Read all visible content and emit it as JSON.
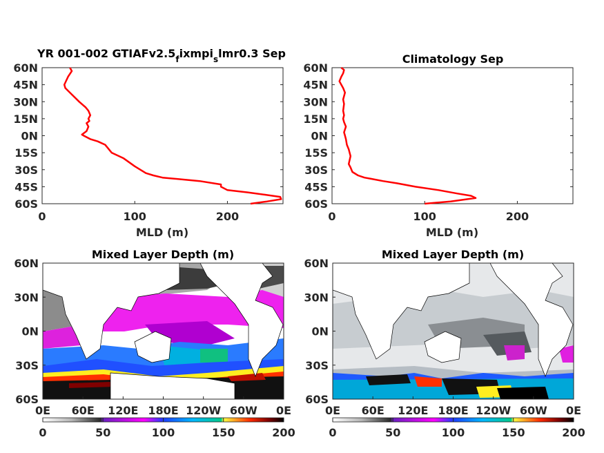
{
  "chart_data": [
    {
      "type": "line",
      "panel": "top-left",
      "title": "YR 001-002 GTIAFv2.5",
      "title_sub1": "f",
      "title_mid": "ixmpi",
      "title_sub2": "s",
      "title_end": "lmr0.3 Sep",
      "xlabel": "MLD (m)",
      "ylabel": "",
      "xlim": [
        0,
        260
      ],
      "ylim": [
        -60,
        60
      ],
      "xticks": [
        0,
        100,
        200
      ],
      "yticks": [
        60,
        45,
        30,
        15,
        0,
        -15,
        -30,
        -45,
        -60
      ],
      "yticklabels": [
        "60N",
        "45N",
        "30N",
        "15N",
        "0N",
        "15S",
        "30S",
        "45S",
        "60S"
      ],
      "line_color": "#ff0000",
      "series": [
        {
          "x": [
            225,
            243,
            258,
            257,
            240,
            222,
            200,
            193,
            193,
            170,
            130,
            120,
            112,
            100,
            88,
            75,
            68,
            60,
            52,
            45,
            43,
            48,
            50,
            48,
            51,
            50,
            52,
            50,
            47,
            40,
            30,
            25,
            24,
            28,
            32,
            30
          ],
          "y": [
            -60,
            -58,
            -56,
            -54,
            -52,
            -50,
            -48,
            -45,
            -43,
            -40,
            -37,
            -35,
            -33,
            -27,
            -20,
            -15,
            -8,
            -5,
            -3,
            0,
            1,
            4,
            8,
            11,
            13,
            15,
            18,
            22,
            25,
            30,
            38,
            42,
            45,
            52,
            57,
            60
          ]
        }
      ]
    },
    {
      "type": "line",
      "panel": "top-right",
      "title": "Climatology Sep",
      "xlabel": "MLD (m)",
      "ylabel": "",
      "xlim": [
        0,
        260
      ],
      "ylim": [
        -60,
        60
      ],
      "xticks": [
        0,
        100,
        200
      ],
      "yticks": [
        60,
        45,
        30,
        15,
        0,
        -15,
        -30,
        -45,
        -60
      ],
      "yticklabels": [
        "60N",
        "45N",
        "30N",
        "15N",
        "0N",
        "15S",
        "30S",
        "45S",
        "60S"
      ],
      "line_color": "#ff0000",
      "series": [
        {
          "x": [
            100,
            128,
            155,
            150,
            135,
            115,
            90,
            70,
            55,
            42,
            35,
            28,
            22,
            20,
            18,
            20,
            18,
            16,
            15,
            14,
            13,
            15,
            13,
            12,
            13,
            12,
            13,
            12,
            14,
            12,
            10,
            8,
            10,
            12,
            13,
            10
          ],
          "y": [
            -60,
            -58,
            -55,
            -53,
            -51,
            -48,
            -45,
            -42,
            -40,
            -38,
            -37,
            -35,
            -32,
            -28,
            -25,
            -18,
            -12,
            -8,
            -3,
            0,
            3,
            8,
            12,
            15,
            18,
            22,
            28,
            32,
            38,
            42,
            45,
            48,
            52,
            55,
            58,
            60
          ]
        }
      ]
    },
    {
      "type": "heatmap",
      "panel": "bottom-left",
      "title": "Mixed Layer Depth (m)",
      "xticklabels": [
        "0E",
        "60E",
        "120E",
        "180E",
        "120W",
        "60W",
        "0E"
      ],
      "yticklabels": [
        "60N",
        "30N",
        "0N",
        "30S",
        "60S"
      ],
      "colorbar_ticks": [
        0,
        50,
        100,
        150,
        200
      ],
      "clim": [
        0,
        200
      ]
    },
    {
      "type": "heatmap",
      "panel": "bottom-right",
      "title": "Mixed Layer Depth (m)",
      "xticklabels": [
        "0E",
        "60E",
        "120E",
        "180E",
        "120W",
        "60W",
        "0E"
      ],
      "yticklabels": [
        "60N",
        "30N",
        "0N",
        "30S",
        "60S"
      ],
      "colorbar_ticks": [
        0,
        50,
        100,
        150,
        200
      ],
      "clim": [
        0,
        200
      ]
    }
  ],
  "colors": {
    "colormap": [
      "#ffffff",
      "#6e6e6e",
      "#1e1e1e",
      "#8a2be2",
      "#ff00ff",
      "#2050ff",
      "#00bfff",
      "#00c080",
      "#ffff00",
      "#ff2000",
      "#800000",
      "#000000"
    ]
  }
}
